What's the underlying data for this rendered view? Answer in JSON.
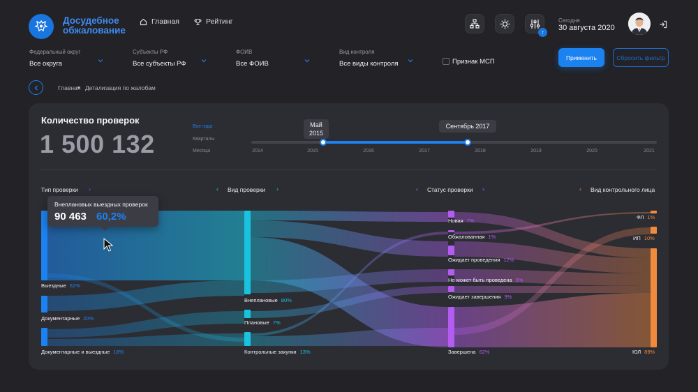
{
  "header": {
    "logo_text": "Досудебное обжалование",
    "nav": [
      {
        "label": "Главная",
        "icon": "home-icon"
      },
      {
        "label": "Рейтинг",
        "icon": "trophy-icon"
      }
    ],
    "today_label": "Сегодня",
    "today_date": "30 августа 2020",
    "notification_badge": "↑"
  },
  "filters": {
    "items": [
      {
        "label": "Федеральный округ",
        "value": "Все округа"
      },
      {
        "label": "Субъекты РФ",
        "value": "Все субъекты РФ"
      },
      {
        "label": "ФОИВ",
        "value": "Все ФОИВ"
      },
      {
        "label": "Вид контроля",
        "value": "Все виды контроля"
      }
    ],
    "msp_label": "Признак МСП",
    "apply_label": "Применить",
    "reset_label": "Сбросить фильтр"
  },
  "breadcrumb": {
    "home": "Главная",
    "current": "Детализация по жалобам"
  },
  "card": {
    "title": "Количество проверок",
    "total": "1 500 132",
    "periods": [
      "Все года",
      "Кварталы",
      "Месяца"
    ],
    "active_period": "Все года",
    "years": [
      "2014",
      "2015",
      "2016",
      "2017",
      "2018",
      "2019",
      "2020",
      "2021"
    ],
    "range_start_tip_1": "Май",
    "range_start_tip_2": "2015",
    "range_end_tip": "Сентябрь 2017"
  },
  "chart_data": {
    "type": "sankey",
    "columns": [
      {
        "title": "Тип проверки",
        "nodes": [
          {
            "name": "Выездные",
            "value": "62%"
          },
          {
            "name": "Документарные",
            "value": "20%"
          },
          {
            "name": "Документарные и выездные",
            "value": "18%"
          }
        ]
      },
      {
        "title": "Вид проверки",
        "nodes": [
          {
            "name": "Внеплановые",
            "value": "80%"
          },
          {
            "name": "Плановые",
            "value": "7%"
          },
          {
            "name": "Контрольные закупки",
            "value": "13%"
          }
        ]
      },
      {
        "title": "Статус проверки",
        "nodes": [
          {
            "name": "Новая",
            "value": "7%"
          },
          {
            "name": "Обжалованная",
            "value": "1%"
          },
          {
            "name": "Ожидает проведения",
            "value": "12%"
          },
          {
            "name": "Не может быть проведена",
            "value": "9%"
          },
          {
            "name": "Ожидает завершения",
            "value": "9%"
          },
          {
            "name": "Завершена",
            "value": "62%"
          }
        ]
      },
      {
        "title": "Вид контрольного лица",
        "nodes": [
          {
            "name": "ФЛ",
            "value": "1%"
          },
          {
            "name": "ИП",
            "value": "10%"
          },
          {
            "name": "ЮЛ",
            "value": "89%"
          }
        ]
      }
    ],
    "tooltip": {
      "title": "Внеплановых выездных проверок",
      "value": "90 463",
      "percent": "60,2%"
    }
  },
  "colors": {
    "accent": "#1b82f0",
    "col1": "#1b82f0",
    "col2": "#19c3e0",
    "col3": "#b25cf0",
    "col4": "#f08a3c"
  }
}
